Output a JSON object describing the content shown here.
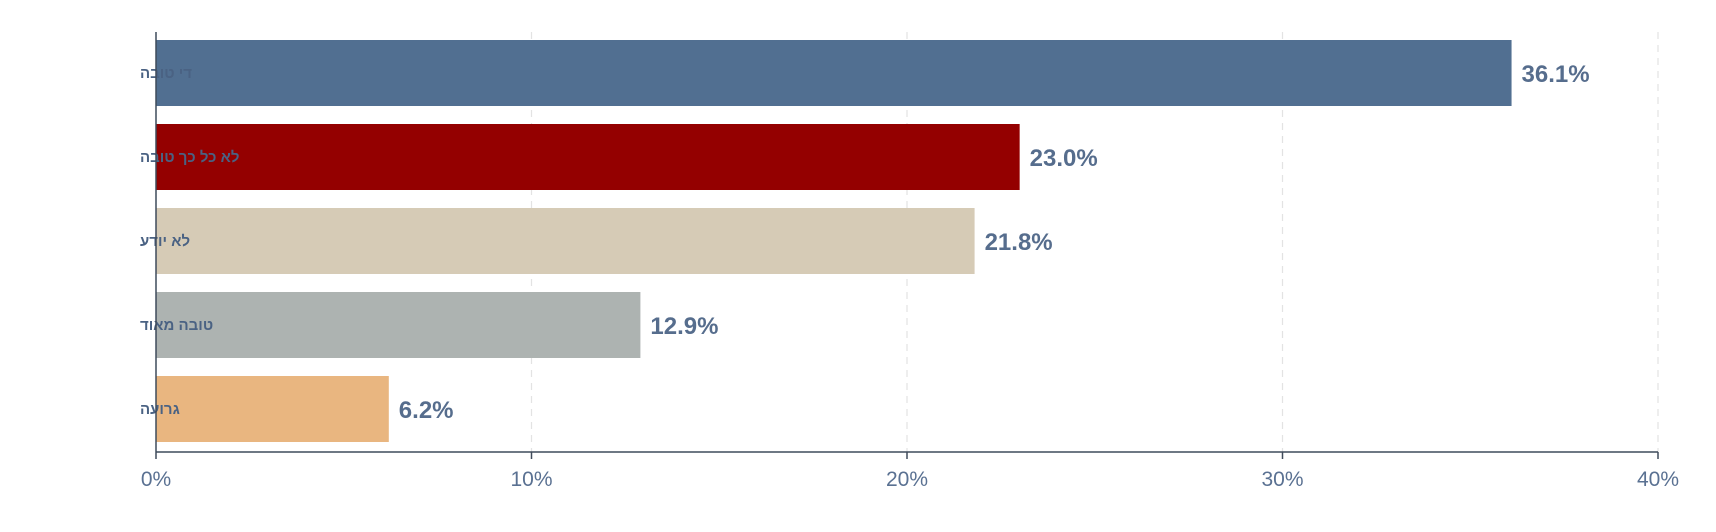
{
  "chart_data": {
    "type": "bar",
    "orientation": "horizontal",
    "categories": [
      "די טובה",
      "לא כל כך טובה",
      "לא יודע",
      "טובה מאוד",
      "גרועה"
    ],
    "values": [
      36.1,
      23.0,
      21.8,
      12.9,
      6.2
    ],
    "value_labels": [
      "36.1%",
      "23.0%",
      "21.8%",
      "12.9%",
      "6.2%"
    ],
    "colors": [
      "#516f91",
      "#940000",
      "#d6cbb6",
      "#adb3b1",
      "#e9b680"
    ],
    "xlim": [
      0,
      40
    ],
    "x_ticks": [
      0,
      10,
      20,
      30,
      40
    ],
    "x_tick_labels": [
      "0%",
      "10%",
      "20%",
      "30%",
      "40%"
    ],
    "grid": "vertical dashed",
    "legend": "none"
  }
}
